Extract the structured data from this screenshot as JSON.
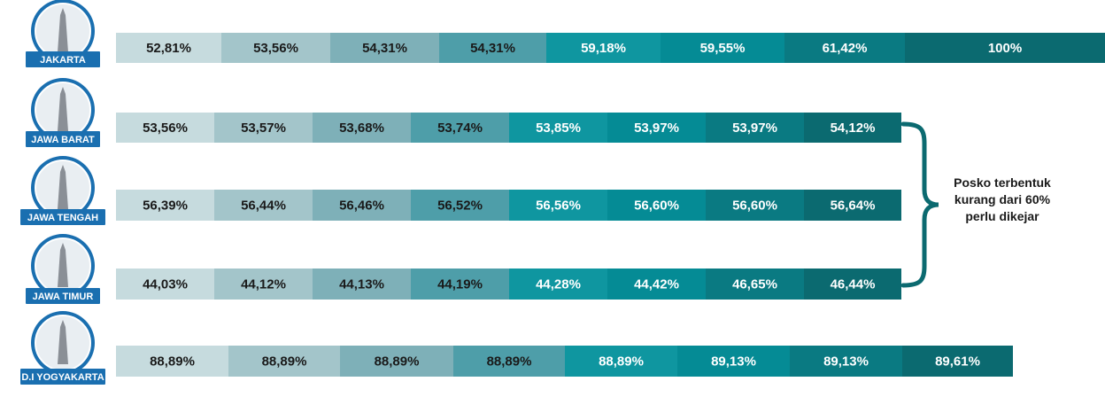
{
  "chart_data": {
    "type": "bar",
    "series": [
      {
        "name": "JAKARTA",
        "labels": [
          "52,81%",
          "53,56%",
          "54,31%",
          "54,31%",
          "59,18%",
          "59,55%",
          "61,42%",
          "100%"
        ],
        "values": [
          52.81,
          53.56,
          54.31,
          54.31,
          59.18,
          59.55,
          61.42,
          100
        ]
      },
      {
        "name": "JAWA BARAT",
        "labels": [
          "53,56%",
          "53,57%",
          "53,68%",
          "53,74%",
          "53,85%",
          "53,97%",
          "53,97%",
          "54,12%"
        ],
        "values": [
          53.56,
          53.57,
          53.68,
          53.74,
          53.85,
          53.97,
          53.97,
          54.12
        ]
      },
      {
        "name": "JAWA TENGAH",
        "labels": [
          "56,39%",
          "56,44%",
          "56,46%",
          "56,52%",
          "56,56%",
          "56,60%",
          "56,60%",
          "56,64%"
        ],
        "values": [
          56.39,
          56.44,
          56.46,
          56.52,
          56.56,
          56.6,
          56.6,
          56.64
        ]
      },
      {
        "name": "JAWA TIMUR",
        "labels": [
          "44,03%",
          "44,12%",
          "44,13%",
          "44,19%",
          "44,28%",
          "44,42%",
          "46,65%",
          "46,44%"
        ],
        "values": [
          44.03,
          44.12,
          44.13,
          44.19,
          44.28,
          44.42,
          46.65,
          46.44
        ]
      },
      {
        "name": "D.I YOGYAKARTA",
        "labels": [
          "88,89%",
          "88,89%",
          "88,89%",
          "88,89%",
          "88,89%",
          "89,13%",
          "89,13%",
          "89,61%"
        ],
        "values": [
          88.89,
          88.89,
          88.89,
          88.89,
          88.89,
          89.13,
          89.13,
          89.61
        ]
      }
    ],
    "segment_colors": [
      "#c6dbde",
      "#a3c5ca",
      "#7eb0b8",
      "#4e9ea9",
      "#0f96a0",
      "#058b95",
      "#0a7a82",
      "#0b6a70"
    ],
    "text_colors": [
      "#1a1a1a",
      "#1a1a1a",
      "#1a1a1a",
      "#1a1a1a",
      "#ffffff",
      "#ffffff",
      "#ffffff",
      "#ffffff"
    ],
    "annotation": {
      "lines": [
        "Posko terbentuk",
        "kurang dari 60%",
        "perlu dikejar"
      ],
      "bracket_color": "#0b6a70"
    },
    "badge_color": "#1a6fb0"
  }
}
